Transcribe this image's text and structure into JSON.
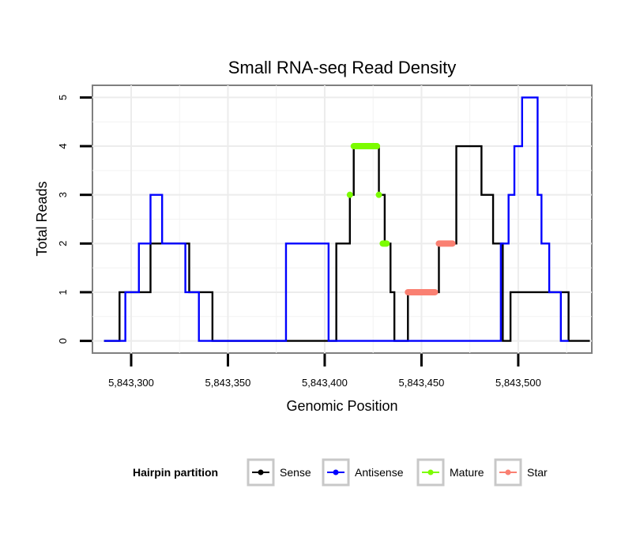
{
  "chart_data": {
    "type": "line",
    "title": "Small RNA-seq Read Density",
    "xlabel": "Genomic Position",
    "ylabel": "Total Reads",
    "xlim": [
      5843280,
      5843538
    ],
    "ylim": [
      -0.25,
      5.25
    ],
    "x_ticks": [
      5843300,
      5843350,
      5843400,
      5843450,
      5843500
    ],
    "x_tick_labels": [
      "5,843,300",
      "5,843,350",
      "5,843,400",
      "5,843,450",
      "5,843,500"
    ],
    "y_ticks": [
      0,
      1,
      2,
      3,
      4,
      5
    ],
    "y_tick_labels": [
      "0",
      "1",
      "2",
      "3",
      "4",
      "5"
    ],
    "grid": true,
    "legend": {
      "title": "Hairpin partition",
      "position": "bottom",
      "entries": [
        {
          "label": "Sense",
          "color": "#000000"
        },
        {
          "label": "Antisense",
          "color": "#0000ff"
        },
        {
          "label": "Mature",
          "color": "#7cfc00"
        },
        {
          "label": "Star",
          "color": "#fa8072"
        }
      ]
    },
    "series": [
      {
        "name": "Sense",
        "color": "#000000",
        "step": [
          [
            5843286,
            0
          ],
          [
            5843294,
            1
          ],
          [
            5843310,
            2
          ],
          [
            5843330,
            1
          ],
          [
            5843342,
            0
          ],
          [
            5843406,
            2
          ],
          [
            5843413,
            3
          ],
          [
            5843415,
            4
          ],
          [
            5843428,
            3
          ],
          [
            5843431,
            2
          ],
          [
            5843434,
            1
          ],
          [
            5843436,
            0
          ],
          [
            5843443,
            1
          ],
          [
            5843459,
            2
          ],
          [
            5843468,
            4
          ],
          [
            5843481,
            3
          ],
          [
            5843487,
            2
          ],
          [
            5843492,
            0
          ],
          [
            5843496,
            1
          ],
          [
            5843526,
            0
          ],
          [
            5843537,
            0
          ]
        ]
      },
      {
        "name": "Antisense",
        "color": "#0000ff",
        "step": [
          [
            5843286,
            0
          ],
          [
            5843297,
            1
          ],
          [
            5843304,
            2
          ],
          [
            5843310,
            3
          ],
          [
            5843316,
            2
          ],
          [
            5843328,
            1
          ],
          [
            5843335,
            0
          ],
          [
            5843380,
            2
          ],
          [
            5843402,
            0
          ],
          [
            5843491,
            2
          ],
          [
            5843495,
            3
          ],
          [
            5843498,
            4
          ],
          [
            5843502,
            5
          ],
          [
            5843510,
            3
          ],
          [
            5843512,
            2
          ],
          [
            5843516,
            1
          ],
          [
            5843522,
            0
          ],
          [
            5843526,
            0
          ]
        ]
      },
      {
        "name": "Mature",
        "color": "#7cfc00",
        "segments": [
          {
            "x": [
              5843413,
              5843413
            ],
            "y": 3
          },
          {
            "x": [
              5843415,
              5843427
            ],
            "y": 4
          },
          {
            "x": [
              5843428,
              5843428
            ],
            "y": 3
          },
          {
            "x": [
              5843430,
              5843432
            ],
            "y": 2
          }
        ]
      },
      {
        "name": "Star",
        "color": "#fa8072",
        "segments": [
          {
            "x": [
              5843443,
              5843457
            ],
            "y": 1
          },
          {
            "x": [
              5843459,
              5843466
            ],
            "y": 2
          }
        ]
      }
    ]
  }
}
